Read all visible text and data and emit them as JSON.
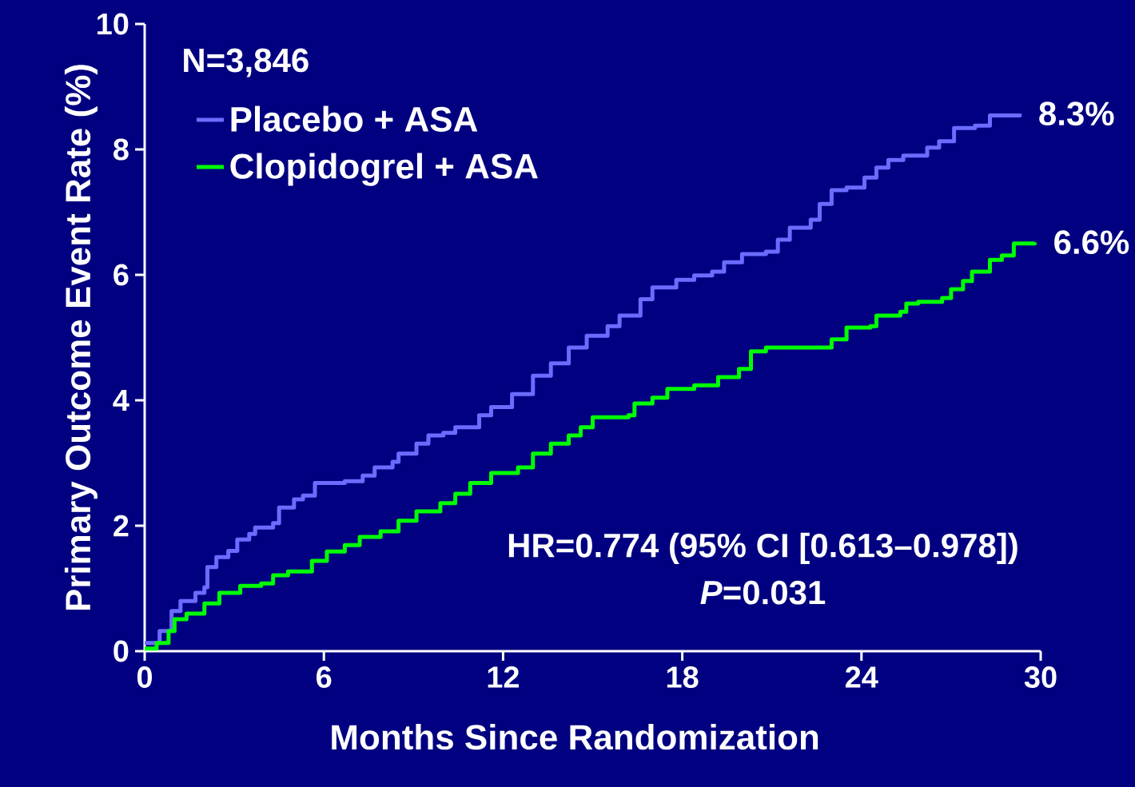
{
  "chart_data": {
    "type": "step",
    "xlabel": "Months Since Randomization",
    "ylabel": "Primary Outcome Event Rate (%)",
    "xlim": [
      0,
      30
    ],
    "ylim": [
      0,
      10
    ],
    "xticks": [
      0,
      6,
      12,
      18,
      24,
      30
    ],
    "yticks": [
      0,
      2,
      4,
      6,
      8,
      10
    ],
    "legend": "top left",
    "grid": false,
    "annotations": [
      "N=3,846",
      "8.3%",
      "6.6%",
      "HR=0.774 (95% CI [0.613–0.978])",
      "*P*=0.031"
    ],
    "series": [
      {
        "name": "Placebo + ASA",
        "color": "#6b6bff",
        "x": [
          0,
          0.5,
          0.9,
          1.2,
          1.7,
          2.0,
          2.1,
          2.4,
          2.8,
          3.1,
          3.5,
          3.7,
          4.3,
          4.5,
          5.0,
          5.3,
          5.7,
          6.7,
          7.3,
          7.7,
          8.3,
          8.5,
          9.1,
          9.5,
          10.0,
          10.4,
          11.2,
          11.6,
          12.3,
          13.0,
          13.6,
          14.2,
          14.8,
          15.5,
          15.9,
          16.6,
          17.0,
          17.8,
          18.4,
          19.0,
          19.4,
          20.0,
          20.8,
          21.2,
          21.6,
          22.3,
          22.6,
          23.0,
          23.5,
          24.1,
          24.5,
          24.9,
          25.4,
          26.2,
          26.6,
          27.1,
          27.8,
          28.3,
          29.3
        ],
        "values": [
          0.13,
          0.32,
          0.64,
          0.8,
          0.93,
          1.02,
          1.34,
          1.5,
          1.6,
          1.78,
          1.87,
          1.97,
          2.04,
          2.29,
          2.42,
          2.48,
          2.68,
          2.71,
          2.8,
          2.93,
          3.02,
          3.15,
          3.31,
          3.44,
          3.48,
          3.57,
          3.76,
          3.89,
          4.1,
          4.39,
          4.59,
          4.84,
          5.03,
          5.18,
          5.35,
          5.61,
          5.8,
          5.92,
          5.99,
          6.05,
          6.2,
          6.33,
          6.37,
          6.56,
          6.75,
          6.88,
          7.13,
          7.35,
          7.39,
          7.55,
          7.71,
          7.83,
          7.9,
          8.03,
          8.13,
          8.34,
          8.38,
          8.54,
          8.57
        ]
      },
      {
        "name": "Clopidogrel + ASA",
        "color": "#00ff00",
        "x": [
          0,
          0.4,
          0.8,
          1.0,
          1.4,
          2.0,
          2.5,
          3.2,
          3.9,
          4.3,
          4.8,
          5.6,
          6.1,
          6.7,
          7.2,
          7.9,
          8.5,
          9.1,
          9.9,
          10.4,
          10.9,
          11.6,
          12.5,
          13.0,
          13.6,
          14.2,
          14.6,
          15.0,
          16.2,
          16.4,
          17.0,
          17.5,
          18.4,
          19.2,
          19.9,
          20.3,
          20.8,
          22.5,
          23.0,
          23.5,
          24.3,
          24.5,
          25.3,
          25.5,
          25.9,
          26.7,
          27.0,
          27.4,
          27.7,
          28.3,
          28.7,
          29.1,
          29.8
        ],
        "values": [
          0.04,
          0.13,
          0.32,
          0.51,
          0.6,
          0.76,
          0.93,
          1.04,
          1.08,
          1.21,
          1.27,
          1.44,
          1.59,
          1.69,
          1.82,
          1.91,
          2.08,
          2.23,
          2.36,
          2.51,
          2.68,
          2.84,
          2.93,
          3.15,
          3.31,
          3.44,
          3.57,
          3.73,
          3.76,
          3.95,
          4.04,
          4.18,
          4.24,
          4.37,
          4.5,
          4.78,
          4.84,
          4.84,
          4.97,
          5.16,
          5.18,
          5.35,
          5.41,
          5.54,
          5.57,
          5.63,
          5.77,
          5.9,
          6.05,
          6.24,
          6.31,
          6.5,
          6.52
        ]
      }
    ]
  }
}
